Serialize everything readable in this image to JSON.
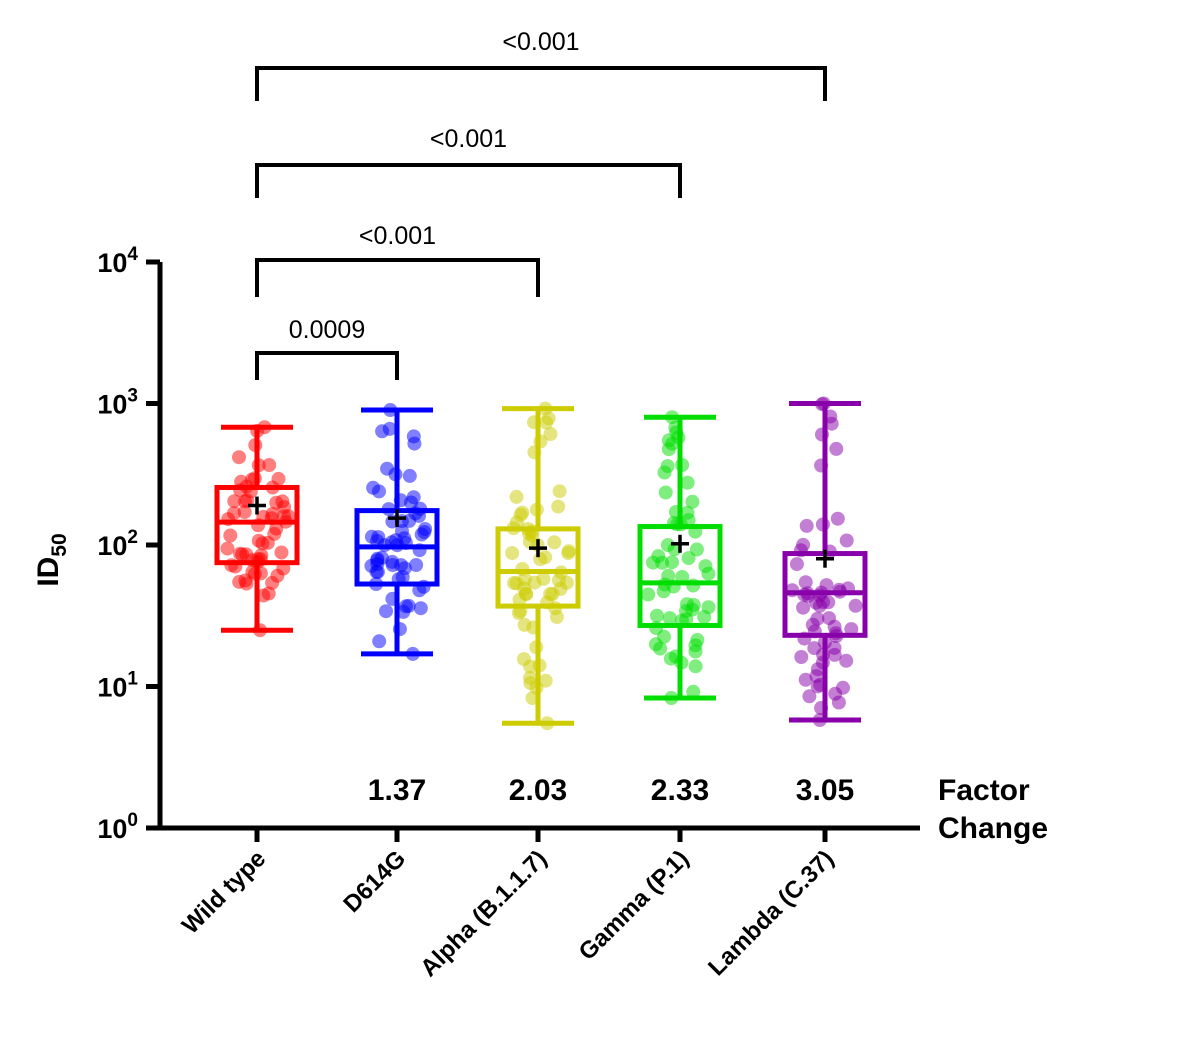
{
  "chart_data": {
    "type": "box",
    "ylabel_main": "ID",
    "ylabel_sub": "50",
    "y_scale": "log10",
    "ylim": [
      1,
      10000
    ],
    "y_ticks": [
      {
        "base": "10",
        "exp": "0"
      },
      {
        "base": "10",
        "exp": "1"
      },
      {
        "base": "10",
        "exp": "2"
      },
      {
        "base": "10",
        "exp": "3"
      },
      {
        "base": "10",
        "exp": "4"
      }
    ],
    "categories": [
      "Wild type",
      "D614G",
      "Alpha (B.1.1.7)",
      "Gamma (P.1)",
      "Lambda (C.37)"
    ],
    "colors": [
      "#ff0000",
      "#0000ff",
      "#cccc00",
      "#00dd00",
      "#8800aa"
    ],
    "boxes": [
      {
        "name": "Wild type",
        "min": 25,
        "q1": 75,
        "median": 145,
        "q3": 255,
        "max": 680,
        "mean": 190
      },
      {
        "name": "D614G",
        "min": 17,
        "q1": 53,
        "median": 97,
        "q3": 175,
        "max": 900,
        "mean": 155
      },
      {
        "name": "Alpha (B.1.1.7)",
        "min": 5.5,
        "q1": 37,
        "median": 65,
        "q3": 130,
        "max": 920,
        "mean": 95
      },
      {
        "name": "Gamma (P.1)",
        "min": 8.3,
        "q1": 27,
        "median": 54,
        "q3": 135,
        "max": 800,
        "mean": 102
      },
      {
        "name": "Lambda (C.37)",
        "min": 5.8,
        "q1": 23,
        "median": 46,
        "q3": 87,
        "max": 1000,
        "mean": 80
      }
    ],
    "factor_change": {
      "label_line1": "Factor",
      "label_line2": "Change",
      "values": [
        "",
        "1.37",
        "2.03",
        "2.33",
        "3.05"
      ]
    },
    "comparisons": [
      {
        "from": 0,
        "to": 1,
        "p": "0.0009"
      },
      {
        "from": 0,
        "to": 2,
        "p": "<0.001"
      },
      {
        "from": 0,
        "to": 3,
        "p": "<0.001"
      },
      {
        "from": 0,
        "to": 4,
        "p": "<0.001"
      }
    ]
  }
}
